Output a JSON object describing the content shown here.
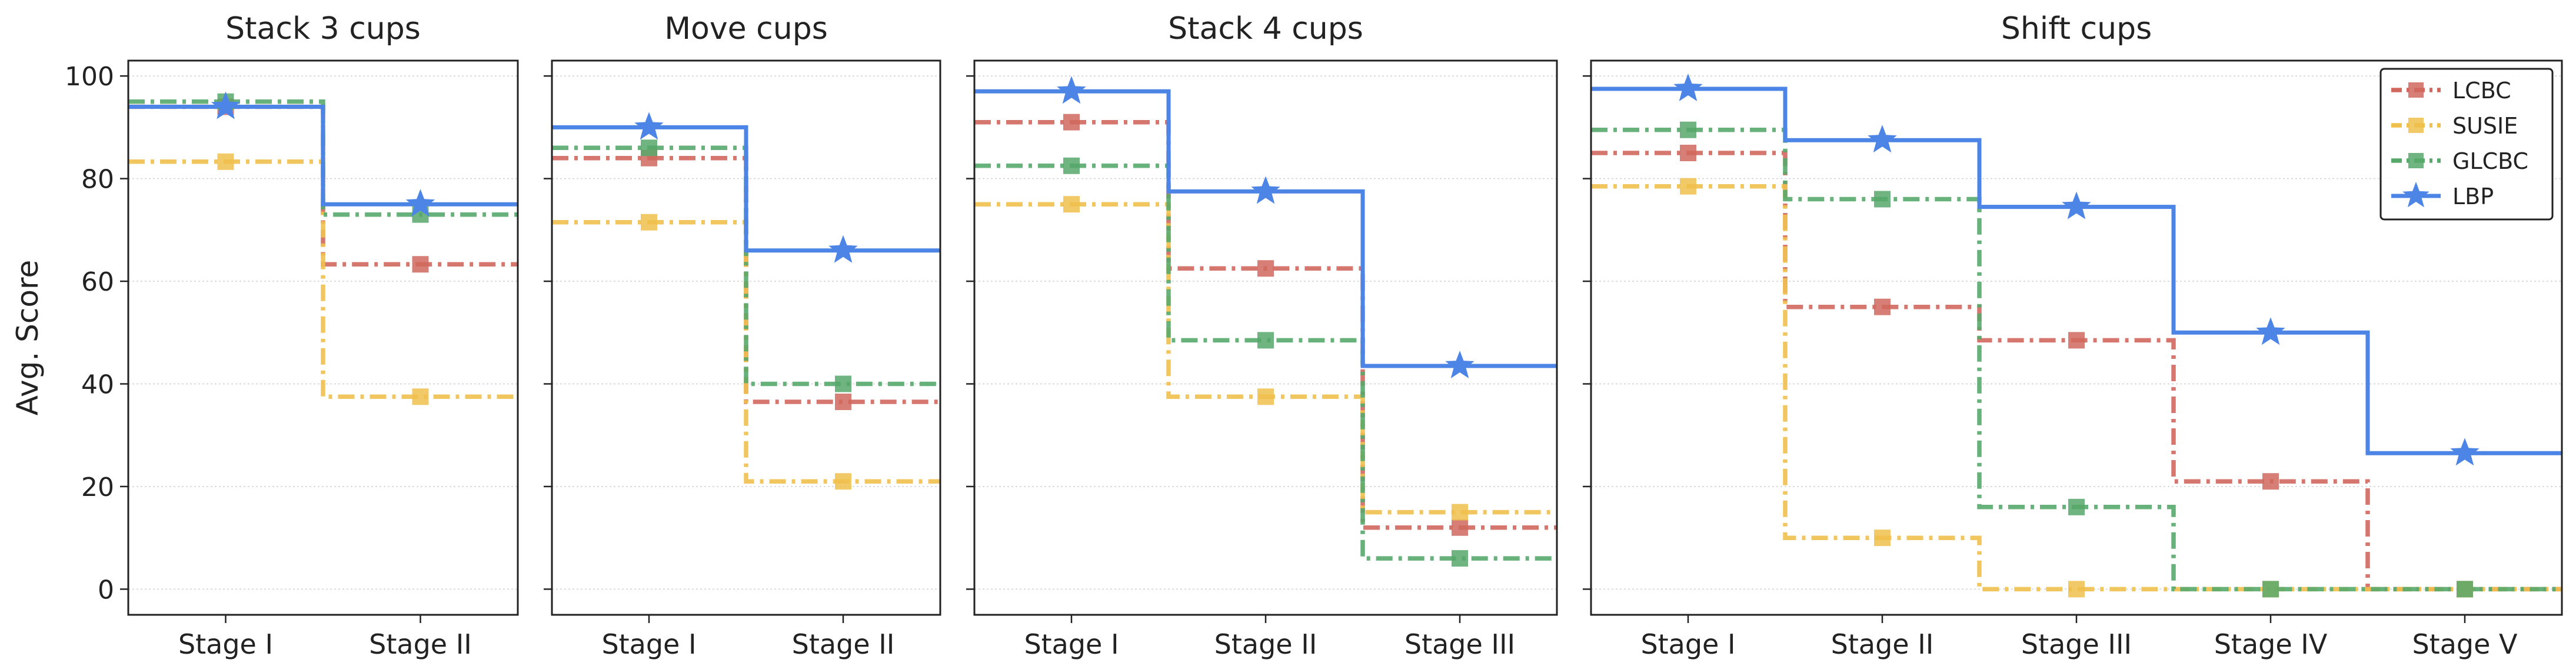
{
  "figure": {
    "ylabel": "Avg. Score",
    "yticks": [
      0,
      20,
      40,
      60,
      80,
      100
    ],
    "ylim": [
      -5,
      103
    ],
    "legend_position": "top-right of last panel"
  },
  "legend": [
    {
      "name": "LCBC",
      "color": "#d0685e",
      "marker": "square",
      "dash": "dashdot"
    },
    {
      "name": "SUSIE",
      "color": "#f0c04c",
      "marker": "square",
      "dash": "dashdot"
    },
    {
      "name": "GLCBC",
      "color": "#57a86b",
      "marker": "square",
      "dash": "dashdot"
    },
    {
      "name": "LBP",
      "color": "#4d85e6",
      "marker": "star",
      "dash": "solid"
    }
  ],
  "chart_data": [
    {
      "type": "line",
      "step": "mid",
      "title": "Stack 3 cups",
      "categories": [
        "Stage I",
        "Stage II"
      ],
      "ylabel": "Avg. Score",
      "ylim": [
        -5,
        103
      ],
      "grid": "horizontal",
      "series": [
        {
          "name": "LCBC",
          "values": [
            94,
            63.3
          ]
        },
        {
          "name": "SUSIE",
          "values": [
            83.3,
            37.5
          ]
        },
        {
          "name": "GLCBC",
          "values": [
            95,
            73
          ]
        },
        {
          "name": "LBP",
          "values": [
            94,
            75
          ]
        }
      ]
    },
    {
      "type": "line",
      "step": "mid",
      "title": "Move cups",
      "categories": [
        "Stage I",
        "Stage II"
      ],
      "ylim": [
        -5,
        103
      ],
      "grid": "horizontal",
      "series": [
        {
          "name": "LCBC",
          "values": [
            84,
            36.5
          ]
        },
        {
          "name": "SUSIE",
          "values": [
            71.5,
            21
          ]
        },
        {
          "name": "GLCBC",
          "values": [
            86,
            40
          ]
        },
        {
          "name": "LBP",
          "values": [
            90,
            66
          ]
        }
      ]
    },
    {
      "type": "line",
      "step": "mid",
      "title": "Stack 4 cups",
      "categories": [
        "Stage I",
        "Stage II",
        "Stage III"
      ],
      "ylim": [
        -5,
        103
      ],
      "grid": "horizontal",
      "series": [
        {
          "name": "LCBC",
          "values": [
            91,
            62.5,
            12
          ]
        },
        {
          "name": "SUSIE",
          "values": [
            75,
            37.5,
            15
          ]
        },
        {
          "name": "GLCBC",
          "values": [
            82.5,
            48.5,
            6
          ]
        },
        {
          "name": "LBP",
          "values": [
            97,
            77.5,
            43.5
          ]
        }
      ]
    },
    {
      "type": "line",
      "step": "mid",
      "title": "Shift cups",
      "categories": [
        "Stage I",
        "Stage II",
        "Stage III",
        "Stage IV",
        "Stage V"
      ],
      "ylim": [
        -5,
        103
      ],
      "grid": "horizontal",
      "legend": "top-right",
      "series": [
        {
          "name": "LCBC",
          "values": [
            85,
            55,
            48.5,
            21,
            0
          ]
        },
        {
          "name": "SUSIE",
          "values": [
            78.5,
            10,
            0,
            0,
            0
          ]
        },
        {
          "name": "GLCBC",
          "values": [
            89.5,
            76,
            16,
            0,
            0
          ]
        },
        {
          "name": "LBP",
          "values": [
            97.5,
            87.5,
            74.5,
            50,
            26.5
          ]
        }
      ]
    }
  ]
}
